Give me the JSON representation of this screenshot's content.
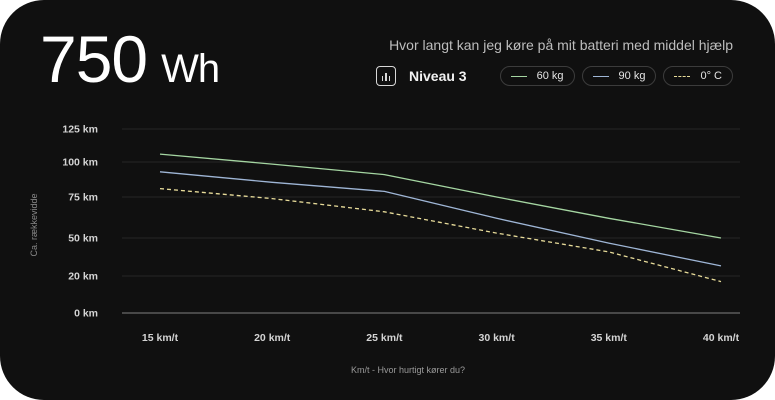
{
  "header": {
    "value": "750",
    "unit": "Wh",
    "question": "Hvor langt kan jeg køre på mit batteri med middel hjælp"
  },
  "level": {
    "icon": "bar-chart-icon",
    "label": "Niveau 3"
  },
  "legend": [
    {
      "label": "60 kg",
      "color": "#a5d6a2",
      "style": "solid"
    },
    {
      "label": "90 kg",
      "color": "#9fb6d6",
      "style": "solid"
    },
    {
      "label": "0° C",
      "color": "#e8dc9a",
      "style": "dashed"
    }
  ],
  "chart_data": {
    "type": "line",
    "x": [
      "15 km/t",
      "20 km/t",
      "25 km/t",
      "30 km/t",
      "35 km/t",
      "40 km/t"
    ],
    "series": [
      {
        "name": "60 kg",
        "values": [
          106,
          98.5,
          91,
          75,
          62,
          50
        ],
        "color": "#a5d6a2",
        "dashed": false
      },
      {
        "name": "90 kg",
        "values": [
          93,
          85.5,
          79,
          62,
          46,
          28
        ],
        "color": "#9fb6d6",
        "dashed": false
      },
      {
        "name": "0° C",
        "values": [
          81,
          74,
          66,
          53,
          39,
          17
        ],
        "color": "#e8dc9a",
        "dashed": true
      }
    ],
    "yticks": [
      {
        "value": 0,
        "label": "0 km"
      },
      {
        "value": 20,
        "label": "20 km"
      },
      {
        "value": 50,
        "label": "50 km"
      },
      {
        "value": 75,
        "label": "75 km"
      },
      {
        "value": 100,
        "label": "100 km"
      },
      {
        "value": 125,
        "label": "125 km"
      }
    ],
    "xlabel": "Km/t - Hvor hurtigt kører du?",
    "ylabel": "Ca. rækkevidde",
    "grid": true
  }
}
